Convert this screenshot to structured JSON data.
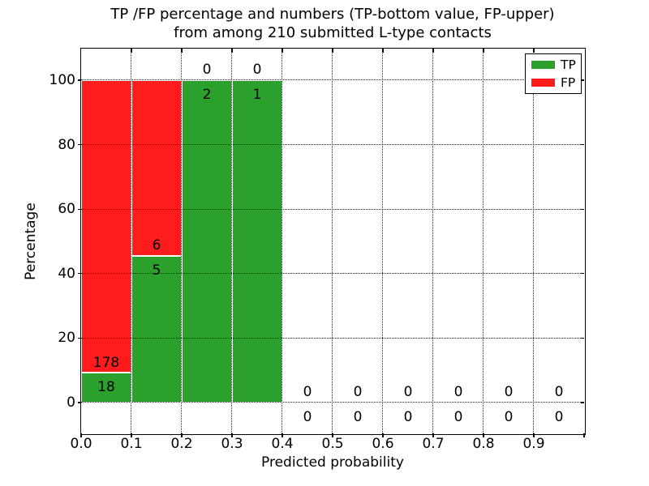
{
  "figure": {
    "title_line1": "TP /FP percentage and numbers (TP-bottom value, FP-upper)",
    "title_line2": "from among 210 submitted L-type contacts"
  },
  "chart_data": {
    "type": "bar",
    "stacked": true,
    "title": "TP /FP percentage and numbers (TP-bottom value, FP-upper) from among 210 submitted L-type contacts",
    "xlabel": "Predicted probability",
    "ylabel": "Percentage",
    "total_contacts": 210,
    "bin_width": 0.1,
    "categories": [
      0.0,
      0.1,
      0.2,
      0.3,
      0.4,
      0.5,
      0.6,
      0.7,
      0.8,
      0.9
    ],
    "series": [
      {
        "name": "TP",
        "color": "#2CA02C",
        "counts": [
          18,
          5,
          2,
          1,
          0,
          0,
          0,
          0,
          0,
          0
        ],
        "percent": [
          9.18,
          45.45,
          100,
          100,
          0,
          0,
          0,
          0,
          0,
          0
        ]
      },
      {
        "name": "FP",
        "color": "#FF1C1C",
        "counts": [
          178,
          6,
          0,
          0,
          0,
          0,
          0,
          0,
          0,
          0
        ],
        "percent": [
          90.82,
          54.55,
          0,
          0,
          0,
          0,
          0,
          0,
          0,
          0
        ]
      }
    ],
    "bar_annotations": {
      "tp_bottom_values": [
        18,
        5,
        2,
        1,
        0,
        0,
        0,
        0,
        0,
        0
      ],
      "fp_upper_values": [
        178,
        6,
        0,
        0,
        0,
        0,
        0,
        0,
        0,
        0
      ]
    },
    "xticks": [
      "0.0",
      "0.1",
      "0.2",
      "0.3",
      "0.4",
      "0.5",
      "0.6",
      "0.7",
      "0.8",
      "0.9"
    ],
    "yticks": [
      0,
      20,
      40,
      60,
      80,
      100
    ],
    "xlim": [
      0,
      1
    ],
    "ylim": [
      -10,
      110
    ],
    "grid": true,
    "grid_style": "dotted",
    "legend_position": "upper right",
    "legend_items": [
      "TP",
      "FP"
    ],
    "bar_edge_color": "#ffffff"
  }
}
